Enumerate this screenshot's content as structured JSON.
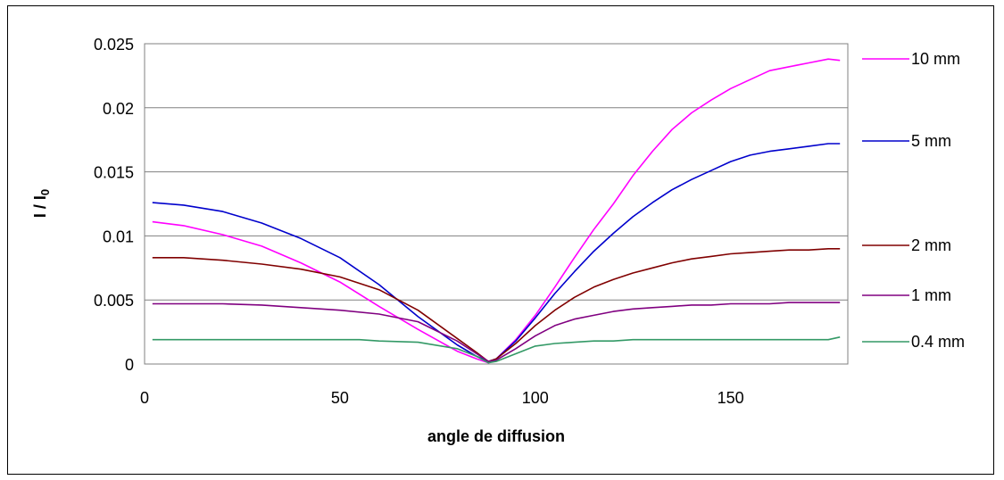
{
  "chart_data": {
    "type": "line",
    "xlabel": "angle de diffusion",
    "ylabel": "I / I",
    "ylabel_sub": "0",
    "xlim": [
      0,
      180
    ],
    "ylim": [
      0,
      0.025
    ],
    "xticks": [
      0,
      50,
      100,
      150
    ],
    "xtick_labels": [
      "0",
      "50",
      "100",
      "150"
    ],
    "yticks": [
      0,
      0.005,
      0.01,
      0.015,
      0.02,
      0.025
    ],
    "ytick_labels": [
      "0",
      "0.005",
      "0.01",
      "0.015",
      "0.02",
      "0.025"
    ],
    "grid": "horizontal",
    "legend": "right",
    "series": [
      {
        "name": "10 mm",
        "color": "#ff00ff",
        "x": [
          2,
          10,
          20,
          30,
          40,
          50,
          60,
          70,
          80,
          85,
          88,
          90,
          95,
          100,
          105,
          110,
          115,
          120,
          125,
          130,
          135,
          140,
          145,
          150,
          155,
          160,
          165,
          170,
          175,
          178
        ],
        "y": [
          0.0111,
          0.0108,
          0.0101,
          0.0092,
          0.0079,
          0.0064,
          0.0045,
          0.0027,
          0.001,
          0.0004,
          0.0001,
          0.0004,
          0.0019,
          0.0038,
          0.006,
          0.0083,
          0.0105,
          0.0125,
          0.0147,
          0.0166,
          0.0183,
          0.0196,
          0.0206,
          0.0215,
          0.0222,
          0.0229,
          0.0232,
          0.0235,
          0.0238,
          0.0237
        ]
      },
      {
        "name": "5 mm",
        "color": "#0000cc",
        "x": [
          2,
          10,
          20,
          30,
          40,
          50,
          60,
          70,
          80,
          85,
          88,
          90,
          95,
          100,
          105,
          110,
          115,
          120,
          125,
          130,
          135,
          140,
          145,
          150,
          155,
          160,
          165,
          170,
          175,
          178
        ],
        "y": [
          0.0126,
          0.0124,
          0.0119,
          0.011,
          0.0098,
          0.0083,
          0.0062,
          0.0037,
          0.0015,
          0.0006,
          0.0002,
          0.0004,
          0.0018,
          0.0036,
          0.0055,
          0.0072,
          0.0088,
          0.0102,
          0.0115,
          0.0126,
          0.0136,
          0.0144,
          0.0151,
          0.0158,
          0.0163,
          0.0166,
          0.0168,
          0.017,
          0.0172,
          0.0172
        ]
      },
      {
        "name": "2 mm",
        "color": "#800000",
        "x": [
          2,
          10,
          20,
          30,
          40,
          50,
          60,
          70,
          80,
          85,
          88,
          90,
          95,
          100,
          105,
          110,
          115,
          120,
          125,
          130,
          135,
          140,
          145,
          150,
          155,
          160,
          165,
          170,
          175,
          178
        ],
        "y": [
          0.0083,
          0.0083,
          0.0081,
          0.0078,
          0.0074,
          0.0068,
          0.0058,
          0.0042,
          0.002,
          0.0009,
          0.0002,
          0.0004,
          0.0016,
          0.003,
          0.0042,
          0.0052,
          0.006,
          0.0066,
          0.0071,
          0.0075,
          0.0079,
          0.0082,
          0.0084,
          0.0086,
          0.0087,
          0.0088,
          0.0089,
          0.0089,
          0.009,
          0.009
        ]
      },
      {
        "name": "1 mm",
        "color": "#800080",
        "x": [
          2,
          10,
          20,
          30,
          40,
          50,
          60,
          70,
          80,
          85,
          88,
          90,
          95,
          100,
          105,
          110,
          115,
          120,
          125,
          130,
          135,
          140,
          145,
          150,
          155,
          160,
          165,
          170,
          175,
          178
        ],
        "y": [
          0.0047,
          0.0047,
          0.0047,
          0.0046,
          0.0044,
          0.0042,
          0.0039,
          0.0033,
          0.0018,
          0.0008,
          0.0002,
          0.0003,
          0.0012,
          0.0022,
          0.003,
          0.0035,
          0.0038,
          0.0041,
          0.0043,
          0.0044,
          0.0045,
          0.0046,
          0.0046,
          0.0047,
          0.0047,
          0.0047,
          0.0048,
          0.0048,
          0.0048,
          0.0048
        ]
      },
      {
        "name": "0.4 mm",
        "color": "#339966",
        "x": [
          2,
          10,
          20,
          30,
          40,
          50,
          55,
          60,
          70,
          80,
          85,
          88,
          90,
          95,
          100,
          105,
          110,
          115,
          120,
          125,
          130,
          135,
          140,
          145,
          150,
          155,
          160,
          165,
          170,
          175,
          178
        ],
        "y": [
          0.0019,
          0.0019,
          0.0019,
          0.0019,
          0.0019,
          0.0019,
          0.0019,
          0.0018,
          0.0017,
          0.0012,
          0.0006,
          0.0001,
          0.0002,
          0.0008,
          0.0014,
          0.0016,
          0.0017,
          0.0018,
          0.0018,
          0.0019,
          0.0019,
          0.0019,
          0.0019,
          0.0019,
          0.0019,
          0.0019,
          0.0019,
          0.0019,
          0.0019,
          0.0019,
          0.0021
        ]
      }
    ]
  }
}
